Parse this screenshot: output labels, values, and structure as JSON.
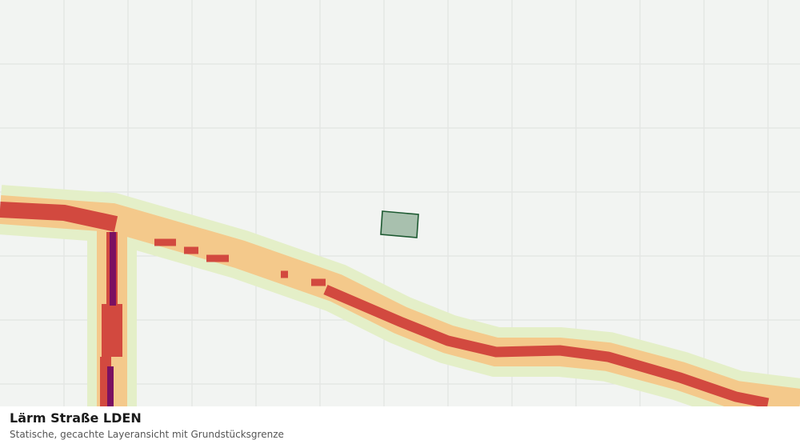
{
  "panel": {
    "title": "Lärm Straße LDEN",
    "subtitle": "Statische, gecachte Layeransicht mit Grundstücksgrenze"
  }
}
